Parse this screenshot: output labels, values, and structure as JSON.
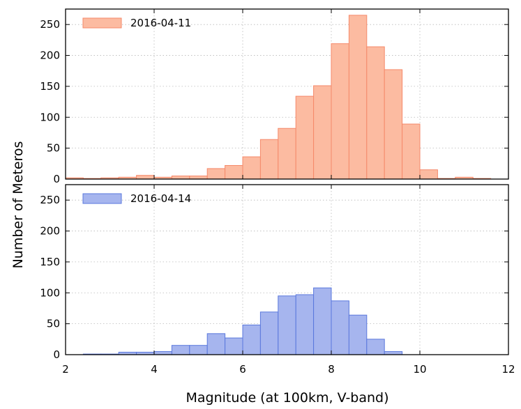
{
  "chart_data": {
    "type": "bar",
    "xlabel": "Magnitude (at 100km, V-band)",
    "ylabel": "Number of Meteros",
    "xlim": [
      2,
      12
    ],
    "xticks": [
      "2",
      "4",
      "6",
      "8",
      "10",
      "12"
    ],
    "ylim": [
      0,
      275
    ],
    "yticks": [
      "0",
      "50",
      "100",
      "150",
      "200",
      "250"
    ],
    "grid": true,
    "bin_width": 0.4,
    "panels": [
      {
        "legend": "2016-04-11",
        "legend_position": "top-left",
        "face_color": "#fcbba1",
        "edge_color": "#f5896a",
        "bins": [
          {
            "x": 2.2,
            "value": 2
          },
          {
            "x": 2.6,
            "value": 1
          },
          {
            "x": 3.0,
            "value": 2
          },
          {
            "x": 3.4,
            "value": 3
          },
          {
            "x": 3.8,
            "value": 6
          },
          {
            "x": 4.2,
            "value": 3
          },
          {
            "x": 4.6,
            "value": 5
          },
          {
            "x": 5.0,
            "value": 5
          },
          {
            "x": 5.4,
            "value": 17
          },
          {
            "x": 5.8,
            "value": 22
          },
          {
            "x": 6.2,
            "value": 36
          },
          {
            "x": 6.6,
            "value": 64
          },
          {
            "x": 7.0,
            "value": 82
          },
          {
            "x": 7.4,
            "value": 134
          },
          {
            "x": 7.8,
            "value": 151
          },
          {
            "x": 8.2,
            "value": 219
          },
          {
            "x": 8.6,
            "value": 265
          },
          {
            "x": 9.0,
            "value": 214
          },
          {
            "x": 9.4,
            "value": 177
          },
          {
            "x": 9.8,
            "value": 89
          },
          {
            "x": 10.2,
            "value": 15
          },
          {
            "x": 10.6,
            "value": 1
          },
          {
            "x": 11.0,
            "value": 3
          },
          {
            "x": 11.4,
            "value": 1
          }
        ]
      },
      {
        "legend": "2016-04-14",
        "legend_position": "top-left",
        "face_color": "#a6b5ee",
        "edge_color": "#5a78dd",
        "bins": [
          {
            "x": 2.6,
            "value": 1
          },
          {
            "x": 3.0,
            "value": 1
          },
          {
            "x": 3.4,
            "value": 4
          },
          {
            "x": 3.8,
            "value": 4
          },
          {
            "x": 4.2,
            "value": 5
          },
          {
            "x": 4.6,
            "value": 15
          },
          {
            "x": 5.0,
            "value": 15
          },
          {
            "x": 5.4,
            "value": 34
          },
          {
            "x": 5.8,
            "value": 27
          },
          {
            "x": 6.2,
            "value": 48
          },
          {
            "x": 6.6,
            "value": 69
          },
          {
            "x": 7.0,
            "value": 95
          },
          {
            "x": 7.4,
            "value": 97
          },
          {
            "x": 7.8,
            "value": 108
          },
          {
            "x": 8.2,
            "value": 87
          },
          {
            "x": 8.6,
            "value": 64
          },
          {
            "x": 9.0,
            "value": 25
          },
          {
            "x": 9.4,
            "value": 5
          }
        ]
      }
    ]
  }
}
